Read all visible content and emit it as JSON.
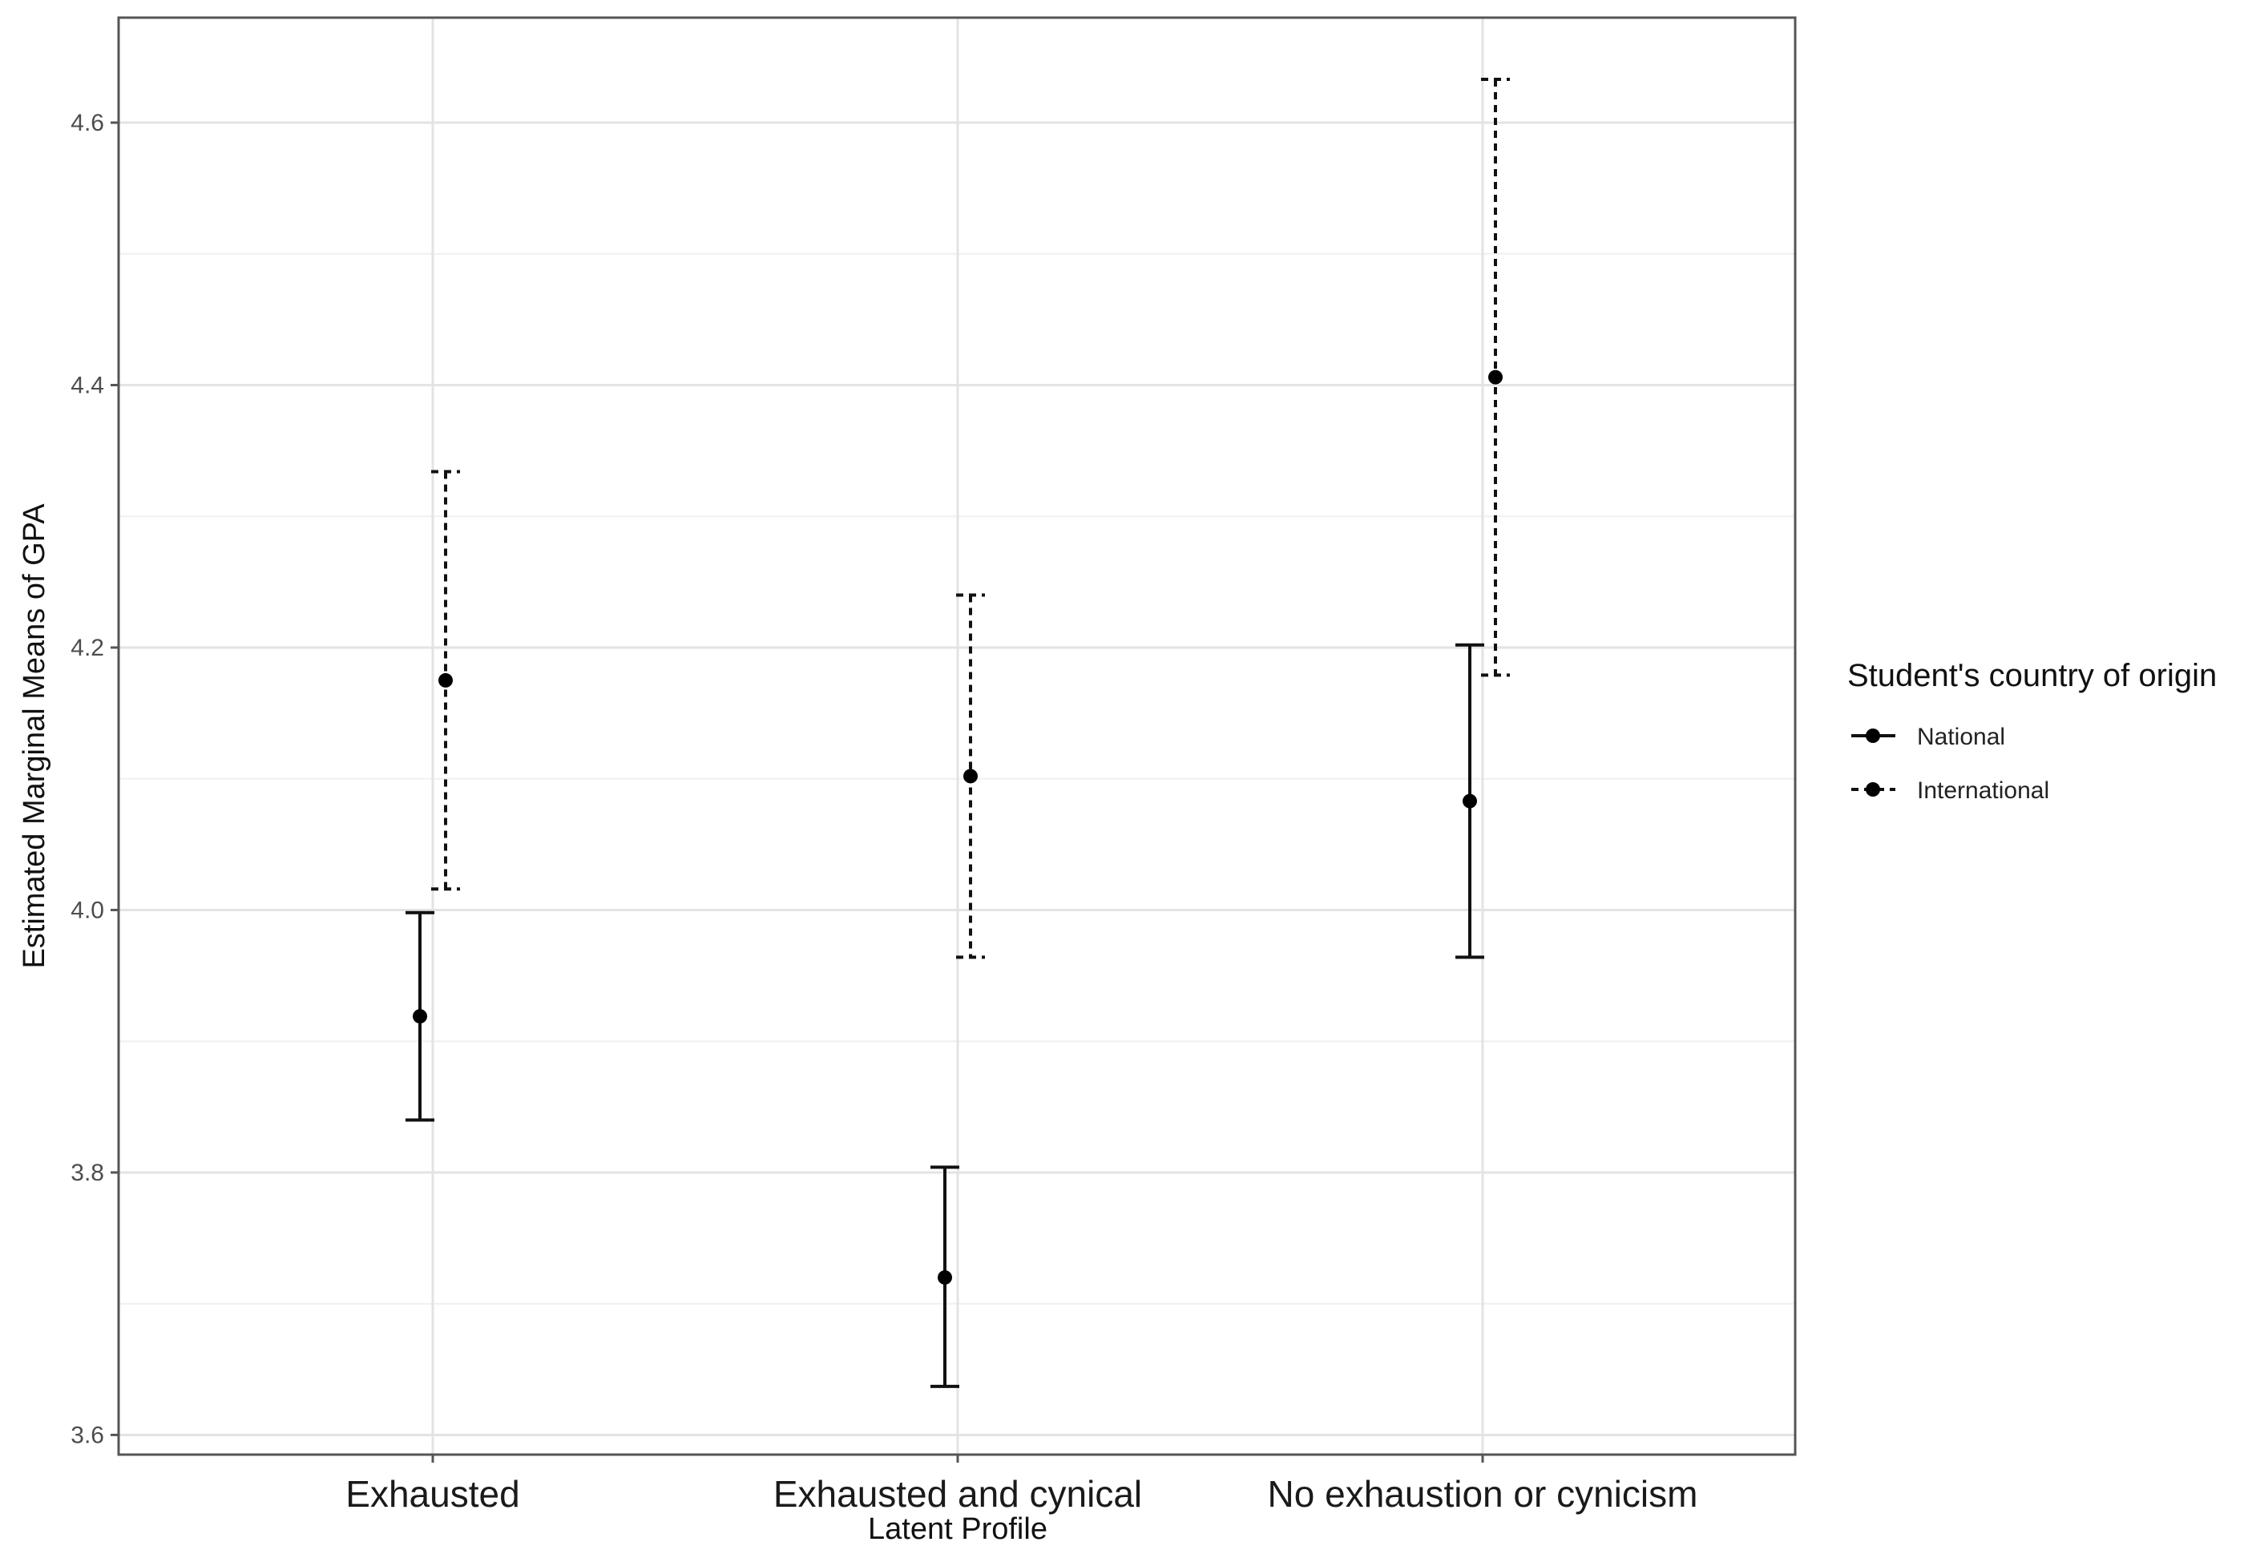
{
  "chart_data": {
    "type": "scatter",
    "title": "",
    "xlabel": "Latent Profile",
    "ylabel": "Estimated Marginal Means of GPA",
    "categories": [
      "Exhausted",
      "Exhausted and cynical",
      "No exhaustion or cynicism"
    ],
    "ylim": [
      3.585,
      4.68
    ],
    "yticks": [
      "3.6",
      "3.8",
      "4.0",
      "4.2",
      "4.4",
      "4.6"
    ],
    "grid": true,
    "legend": {
      "title": "Student's country of origin",
      "placement": "right"
    },
    "series": [
      {
        "name": "National",
        "line_style": "solid",
        "values": [
          3.919,
          3.72,
          4.083
        ],
        "lower": [
          3.84,
          3.637,
          3.964
        ],
        "upper": [
          3.998,
          3.804,
          4.202
        ]
      },
      {
        "name": "International",
        "line_style": "dashed",
        "values": [
          4.175,
          4.102,
          4.406
        ],
        "lower": [
          4.016,
          3.964,
          4.179
        ],
        "upper": [
          4.334,
          4.24,
          4.633
        ]
      }
    ]
  }
}
